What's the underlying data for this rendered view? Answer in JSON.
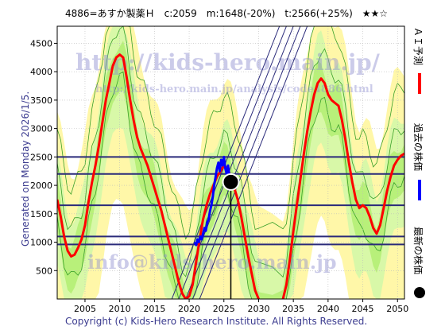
{
  "header": {
    "text": "4886=あすか製薬Ｈ　c:2059　m:1648(-20%)　t:2566(+25%)　★★☆"
  },
  "side_note": "Generated on Monday 2026/1/5.",
  "footer": "Copyright (c) Kids-Hero Research Institute. All Rights Reserved.",
  "watermarks": [
    "http://kids-hero.main.jp/",
    "http://kids-hero.main.jp/analysis/code4886.html",
    "info@kids-hero.main.jp"
  ],
  "legend": [
    {
      "label": "ＡＩ予測",
      "color": "#ff0000"
    },
    {
      "label": "過去の株価",
      "color": "#0000ff"
    },
    {
      "label": "最新の株価",
      "color": "#000000"
    }
  ],
  "chart_data": {
    "type": "line",
    "xlim": [
      2001,
      2051
    ],
    "ylim": [
      0,
      4800
    ],
    "x_ticks": [
      2005,
      2010,
      2015,
      2020,
      2025,
      2030,
      2035,
      2040,
      2045,
      2050
    ],
    "y_ticks": [
      500,
      1000,
      1500,
      2000,
      2500,
      3000,
      3500,
      4000,
      4500
    ],
    "grid": true,
    "colors": {
      "ai": "#ff0000",
      "past": "#0000ff",
      "latest": "#000000",
      "hlines": "#2a2a7a",
      "band_yellow": "#fff7a8",
      "band_green": "#b8f07a",
      "band_lightgreen": "#d8f8a8"
    },
    "horizontal_lines": [
      2500,
      2200,
      1650,
      1100,
      960
    ],
    "trend_channels": [
      {
        "x0": 2017.5,
        "y0": 0,
        "x1": 2033,
        "y1": 4800
      },
      {
        "x0": 2018.5,
        "y0": 0,
        "x1": 2034,
        "y1": 4800
      },
      {
        "x0": 2019.5,
        "y0": 0,
        "x1": 2035,
        "y1": 4800
      },
      {
        "x0": 2020.5,
        "y0": 0,
        "x1": 2036,
        "y1": 4800
      },
      {
        "x0": 2021.5,
        "y0": 0,
        "x1": 2037,
        "y1": 4800
      }
    ],
    "latest_point": {
      "x": 2026.0,
      "y": 2059
    },
    "latest_vline": {
      "x": 2026.0
    },
    "series": [
      {
        "name": "ＡＩ予測",
        "color": "#ff0000",
        "x": [
          2001,
          2001.5,
          2002,
          2002.5,
          2003,
          2003.5,
          2004,
          2004.5,
          2005,
          2005.5,
          2006,
          2006.5,
          2007,
          2007.5,
          2008,
          2008.5,
          2009,
          2009.5,
          2010,
          2010.5,
          2011,
          2011.5,
          2012,
          2012.5,
          2013,
          2013.5,
          2014,
          2014.5,
          2015,
          2015.5,
          2016,
          2016.5,
          2017,
          2017.5,
          2018,
          2018.5,
          2019,
          2019.5,
          2020,
          2020.5,
          2021,
          2021.5,
          2022,
          2022.5,
          2023,
          2023.5,
          2024,
          2024.5,
          2025,
          2025.5,
          2026,
          2026.5,
          2027,
          2027.5,
          2028,
          2028.5,
          2029,
          2029.5,
          2030,
          2030.5,
          2031
        ],
        "y": [
          1750,
          1450,
          1100,
          850,
          750,
          780,
          900,
          1050,
          1300,
          1700,
          2050,
          2350,
          2700,
          3100,
          3500,
          3800,
          4100,
          4250,
          4300,
          4250,
          3900,
          3500,
          3150,
          2850,
          2650,
          2500,
          2350,
          2150,
          1950,
          1750,
          1550,
          1300,
          1050,
          800,
          550,
          300,
          100,
          0,
          50,
          250,
          650,
          1050,
          1400,
          1650,
          1850,
          2000,
          2150,
          2250,
          2350,
          2300,
          2150,
          1950,
          1750,
          1450,
          1100,
          750,
          450,
          150,
          0,
          null,
          null
        ]
      },
      {
        "name": "ＡＩ予測 (future)",
        "color": "#ff0000",
        "x": [
          2033.5,
          2034,
          2034.5,
          2035,
          2035.5,
          2036,
          2036.5,
          2037,
          2037.5,
          2038,
          2038.5,
          2039,
          2039.5,
          2040,
          2040.5,
          2041,
          2041.5,
          2042,
          2042.5,
          2043,
          2043.5,
          2044,
          2044.5,
          2045,
          2045.5,
          2046,
          2046.5,
          2047,
          2047.5,
          2048,
          2048.5,
          2049,
          2049.5,
          2050,
          2050.5,
          2051
        ],
        "y": [
          0,
          250,
          700,
          1200,
          1650,
          2100,
          2550,
          2950,
          3300,
          3600,
          3800,
          3880,
          3800,
          3600,
          3500,
          3450,
          3400,
          3150,
          2800,
          2400,
          2050,
          1750,
          1600,
          1650,
          1600,
          1450,
          1250,
          1150,
          1300,
          1600,
          1900,
          2150,
          2350,
          2450,
          2520,
          2560
        ]
      },
      {
        "name": "過去の株価",
        "color": "#0000ff",
        "x": [
          2020.8,
          2021.0,
          2021.2,
          2021.4,
          2021.6,
          2021.8,
          2022.0,
          2022.2,
          2022.4,
          2022.6,
          2022.8,
          2023.0,
          2023.2,
          2023.4,
          2023.6,
          2023.8,
          2024.0,
          2024.2,
          2024.4,
          2024.6,
          2024.8,
          2025.0,
          2025.2,
          2025.4,
          2025.6,
          2025.8,
          2026.0
        ],
        "y": [
          1000,
          950,
          1050,
          1000,
          1100,
          1050,
          1150,
          1250,
          1200,
          1350,
          1400,
          1550,
          1650,
          1800,
          2000,
          2150,
          2300,
          2400,
          2250,
          2450,
          2350,
          2500,
          2300,
          2200,
          2350,
          2150,
          2059
        ]
      }
    ]
  }
}
